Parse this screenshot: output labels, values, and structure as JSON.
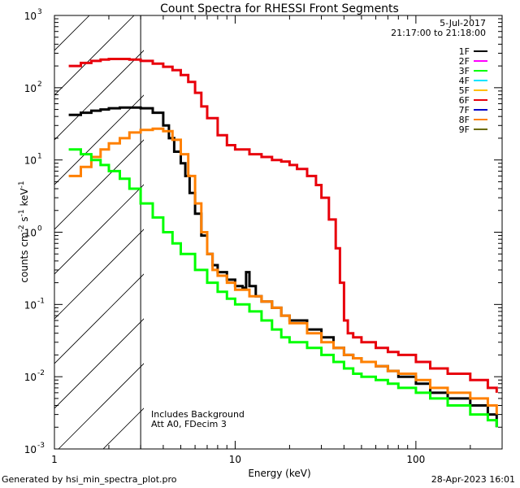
{
  "chart_data": {
    "type": "line",
    "title": "Count Spectra for RHESSI Front Segments",
    "xlabel": "Energy (keV)",
    "ylabel_parts": [
      "counts cm",
      "-2",
      " s",
      "-1",
      " keV",
      "-1"
    ],
    "x_scale": "log",
    "y_scale": "log",
    "xlim": [
      1,
      300
    ],
    "ylim": [
      0.001,
      1000
    ],
    "x_ticks": [
      {
        "value": 1,
        "label": "1"
      },
      {
        "value": 10,
        "label": "10"
      },
      {
        "value": 100,
        "label": "100"
      }
    ],
    "y_ticks": [
      {
        "value": 0.001,
        "mant": "10",
        "exp": "-3"
      },
      {
        "value": 0.01,
        "mant": "10",
        "exp": "-2"
      },
      {
        "value": 0.1,
        "mant": "10",
        "exp": "-1"
      },
      {
        "value": 1,
        "mant": "10",
        "exp": "0"
      },
      {
        "value": 10,
        "mant": "10",
        "exp": "1"
      },
      {
        "value": 100,
        "mant": "10",
        "exp": "2"
      },
      {
        "value": 1000,
        "mant": "10",
        "exp": "3"
      }
    ],
    "hatched_below_keV": 3,
    "date": "5-Jul-2017",
    "time_range": "21:17:00 to 21:18:00",
    "legend_position": "top-right",
    "legend": [
      {
        "name": "1F",
        "color": "#000000"
      },
      {
        "name": "2F",
        "color": "#ff00ff"
      },
      {
        "name": "3F",
        "color": "#00ff00"
      },
      {
        "name": "4F",
        "color": "#00e5ff"
      },
      {
        "name": "5F",
        "color": "#ffbf00"
      },
      {
        "name": "6F",
        "color": "#e8000b"
      },
      {
        "name": "7F",
        "color": "#0000c8"
      },
      {
        "name": "8F",
        "color": "#ff8000"
      },
      {
        "name": "9F",
        "color": "#6b6b00"
      }
    ],
    "annotations": [
      "Includes Background",
      "Att A0, FDecim 3"
    ],
    "series": [
      {
        "name": "6F",
        "color": "#e8000b",
        "x": [
          1.2,
          1.4,
          1.6,
          1.8,
          2.0,
          2.3,
          2.6,
          3.0,
          3.5,
          4.0,
          4.5,
          5.0,
          5.5,
          6.0,
          6.5,
          7.0,
          8.0,
          9.0,
          10,
          12,
          14,
          16,
          18,
          20,
          22,
          25,
          28,
          30,
          33,
          36,
          38,
          40,
          42,
          45,
          50,
          60,
          70,
          80,
          100,
          120,
          150,
          200,
          250,
          280
        ],
        "y": [
          200,
          220,
          235,
          245,
          250,
          250,
          245,
          235,
          215,
          195,
          175,
          150,
          120,
          85,
          55,
          38,
          22,
          16,
          14,
          12,
          11,
          10,
          9.5,
          8.5,
          7.5,
          6,
          4.5,
          3,
          1.5,
          0.6,
          0.2,
          0.06,
          0.04,
          0.035,
          0.03,
          0.025,
          0.022,
          0.02,
          0.016,
          0.013,
          0.011,
          0.009,
          0.007,
          0.006
        ]
      },
      {
        "name": "1F",
        "color": "#000000",
        "x": [
          1.2,
          1.4,
          1.6,
          1.8,
          2.0,
          2.3,
          2.6,
          3.0,
          3.5,
          4.0,
          4.3,
          4.6,
          5.0,
          5.3,
          5.6,
          6.0,
          6.5,
          7.0,
          7.5,
          8.0,
          9.0,
          10,
          11,
          11.5,
          12,
          13,
          14,
          16,
          18,
          20,
          25,
          30,
          35,
          40,
          45,
          50,
          60,
          70,
          80,
          100,
          120,
          150,
          200,
          250,
          280
        ],
        "y": [
          42,
          45,
          48,
          50,
          52,
          53,
          53,
          52,
          45,
          30,
          20,
          13,
          9,
          6,
          3.5,
          1.8,
          0.9,
          0.5,
          0.35,
          0.28,
          0.22,
          0.18,
          0.17,
          0.28,
          0.18,
          0.13,
          0.11,
          0.09,
          0.07,
          0.06,
          0.045,
          0.035,
          0.025,
          0.02,
          0.018,
          0.016,
          0.014,
          0.012,
          0.01,
          0.008,
          0.006,
          0.005,
          0.004,
          0.003,
          0.002
        ]
      },
      {
        "name": "8F",
        "color": "#ff8000",
        "x": [
          1.2,
          1.4,
          1.6,
          1.8,
          2.0,
          2.3,
          2.6,
          3.0,
          3.5,
          4.0,
          4.5,
          5.0,
          5.5,
          6.0,
          6.5,
          7.0,
          7.5,
          8.0,
          9.0,
          10,
          12,
          14,
          16,
          18,
          20,
          25,
          30,
          35,
          40,
          45,
          50,
          60,
          70,
          80,
          100,
          120,
          150,
          200,
          250,
          280
        ],
        "y": [
          6,
          8,
          11,
          14,
          17,
          20,
          24,
          26,
          27,
          25,
          19,
          12,
          6,
          2.5,
          1.0,
          0.5,
          0.3,
          0.25,
          0.2,
          0.16,
          0.13,
          0.11,
          0.09,
          0.07,
          0.055,
          0.04,
          0.03,
          0.025,
          0.02,
          0.018,
          0.016,
          0.014,
          0.012,
          0.011,
          0.009,
          0.007,
          0.006,
          0.005,
          0.004,
          0.003
        ]
      },
      {
        "name": "3F",
        "color": "#00ff00",
        "x": [
          1.2,
          1.4,
          1.6,
          1.8,
          2.0,
          2.3,
          2.6,
          3.0,
          3.5,
          4.0,
          4.5,
          5.0,
          6.0,
          7.0,
          8.0,
          9.0,
          10,
          12,
          14,
          16,
          18,
          20,
          25,
          30,
          35,
          40,
          45,
          50,
          60,
          70,
          80,
          100,
          120,
          150,
          200,
          250,
          280
        ],
        "y": [
          14,
          12,
          10,
          8.5,
          7,
          5.5,
          4,
          2.5,
          1.6,
          1.0,
          0.7,
          0.5,
          0.3,
          0.2,
          0.15,
          0.12,
          0.1,
          0.08,
          0.06,
          0.045,
          0.035,
          0.03,
          0.025,
          0.02,
          0.016,
          0.013,
          0.011,
          0.01,
          0.009,
          0.008,
          0.007,
          0.006,
          0.005,
          0.004,
          0.003,
          0.0025,
          0.002
        ]
      }
    ]
  },
  "footer": {
    "left": "Generated by hsi_min_spectra_plot.pro",
    "right": "28-Apr-2023 16:01"
  }
}
